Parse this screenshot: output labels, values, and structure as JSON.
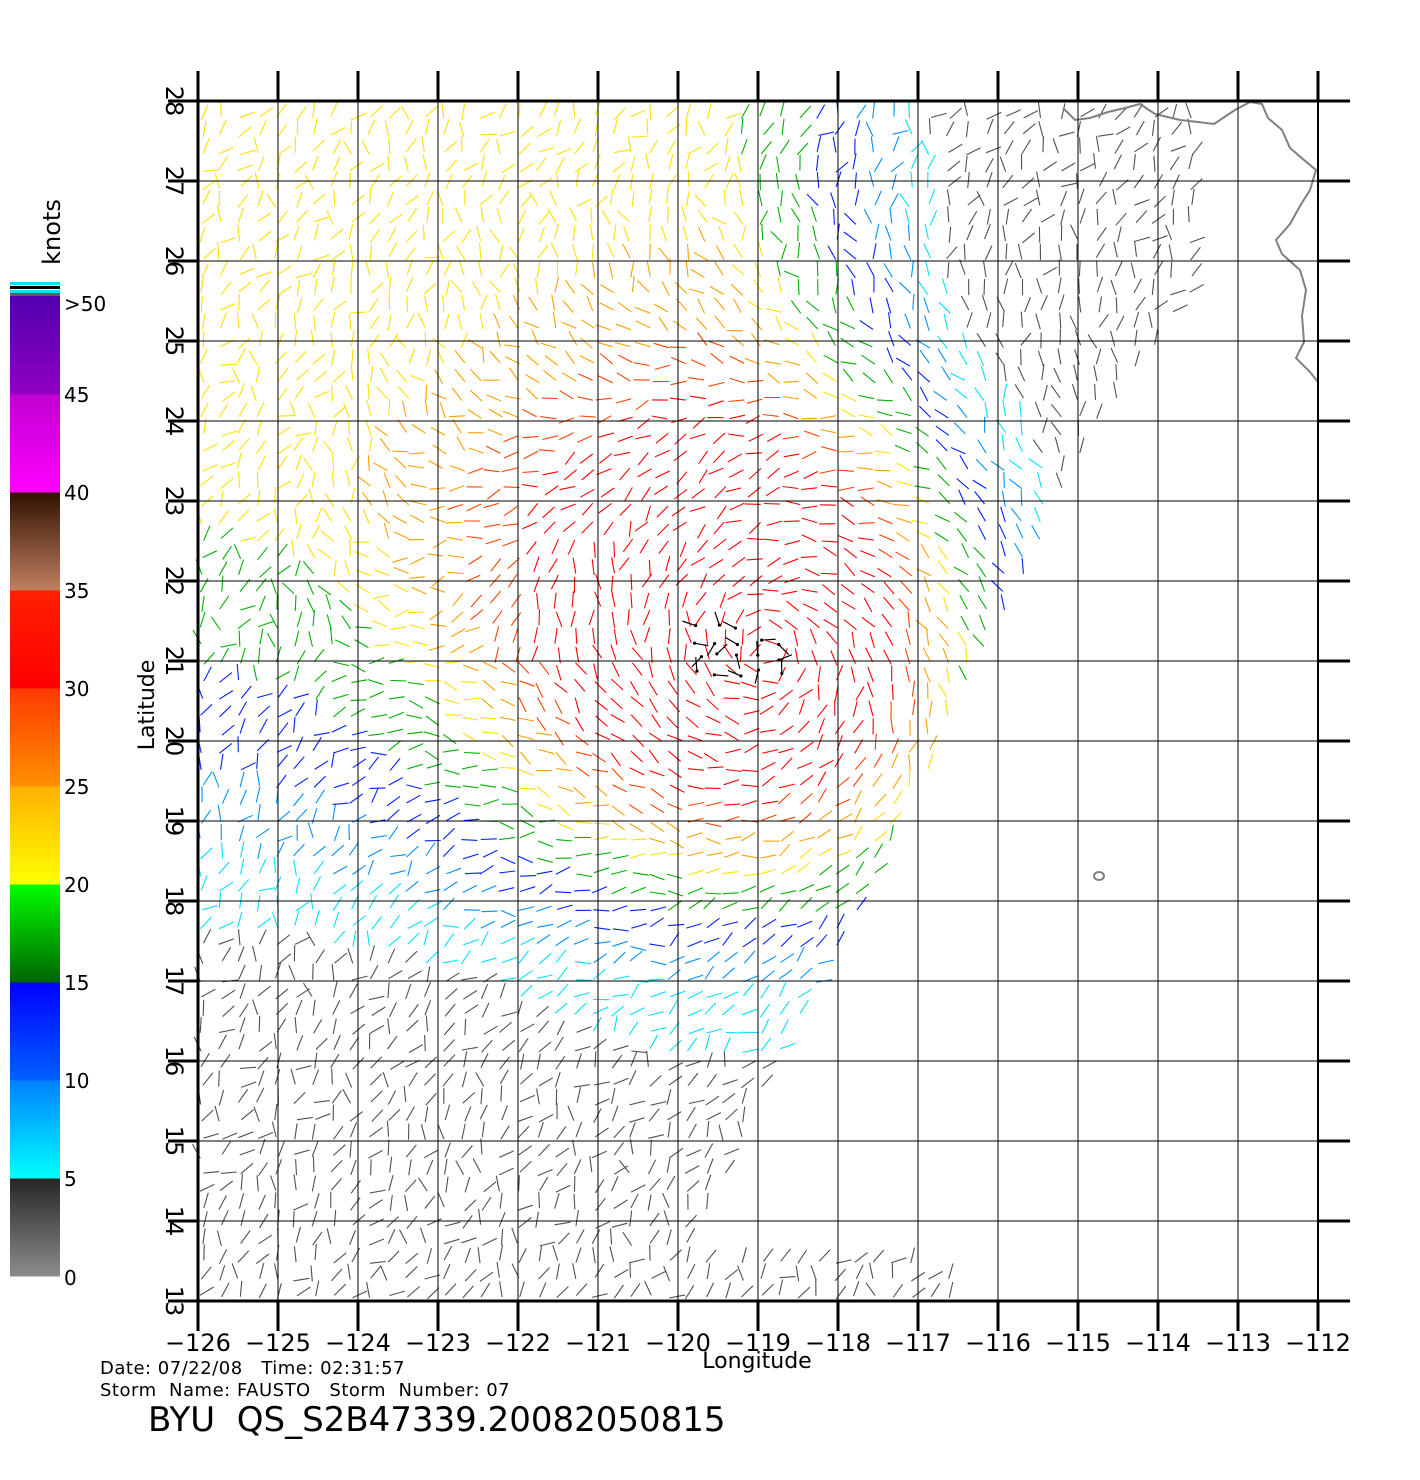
{
  "colorbar": {
    "unit": "knots",
    "labels": [
      "0",
      "5",
      "10",
      "15",
      "20",
      "25",
      "30",
      "35",
      "40",
      "45",
      ">50"
    ],
    "segments": [
      {
        "from": 0,
        "to": 5,
        "colors": [
          "#8c8c8c",
          "#262626"
        ]
      },
      {
        "from": 5,
        "to": 10,
        "colors": [
          "#00ffff",
          "#0080ff"
        ]
      },
      {
        "from": 10,
        "to": 15,
        "colors": [
          "#0060ff",
          "#0000ff"
        ]
      },
      {
        "from": 15,
        "to": 20,
        "colors": [
          "#006400",
          "#00ff00"
        ]
      },
      {
        "from": 20,
        "to": 25,
        "colors": [
          "#ffff00",
          "#ffb000"
        ]
      },
      {
        "from": 25,
        "to": 30,
        "colors": [
          "#ff9000",
          "#ff3800"
        ]
      },
      {
        "from": 30,
        "to": 35,
        "colors": [
          "#ff0000",
          "#ff2000"
        ]
      },
      {
        "from": 35,
        "to": 40,
        "colors": [
          "#c08060",
          "#301000"
        ]
      },
      {
        "from": 40,
        "to": 45,
        "colors": [
          "#ff00ff",
          "#c000d0"
        ]
      },
      {
        "from": 45,
        "to": 50,
        "colors": [
          "#9000c0",
          "#5000b0"
        ]
      }
    ]
  },
  "map": {
    "lon_range": [
      -126,
      -112
    ],
    "lat_range": [
      13,
      28
    ],
    "x_label": "Longitude",
    "y_label": "Latitude",
    "x_ticks": [
      "−126",
      "−125",
      "−124",
      "−123",
      "−122",
      "−121",
      "−120",
      "−119",
      "−118",
      "−117",
      "−116",
      "−115",
      "−114",
      "−113",
      "−112"
    ],
    "y_ticks": [
      "13",
      "14",
      "15",
      "16",
      "17",
      "18",
      "19",
      "20",
      "21",
      "22",
      "23",
      "24",
      "25",
      "26",
      "27",
      "28"
    ],
    "storm_center_lon_lat": [
      -118.9,
      21.1
    ],
    "coastline_color": "#808080",
    "grid_color": "#000000"
  },
  "meta": {
    "line1": "Date: 07/22/08   Time: 02:31:57",
    "line2": "Storm  Name: FAUSTO   Storm  Number: 07",
    "product": "BYU  QS_S2B47339.20082050815"
  }
}
